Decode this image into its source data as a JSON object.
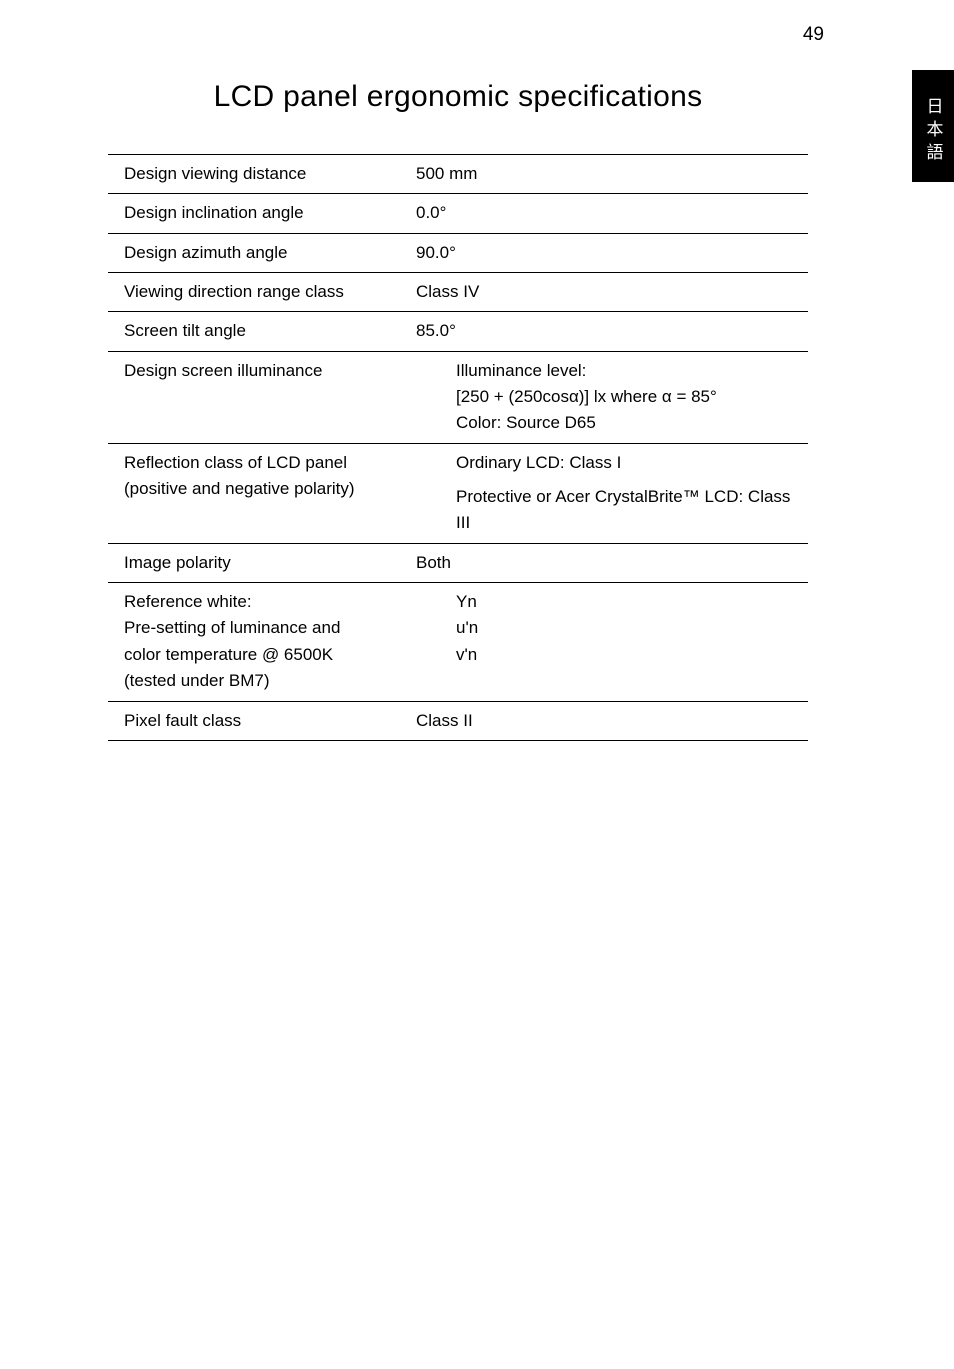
{
  "page_number": "49",
  "side_tab": "日本語",
  "title": "LCD panel ergonomic specifications",
  "table": {
    "rows": [
      {
        "label": "Design viewing distance",
        "value": "500 mm",
        "value_indent": false
      },
      {
        "label": "Design inclination angle",
        "value": "0.0°",
        "value_indent": false
      },
      {
        "label": "Design azimuth angle",
        "value": "90.0°",
        "value_indent": false
      },
      {
        "label": "Viewing direction range class",
        "value": "Class IV",
        "value_indent": false
      },
      {
        "label": "Screen tilt angle",
        "value": "85.0°",
        "value_indent": false
      },
      {
        "label": "Design screen illuminance",
        "value_lines": [
          "Illuminance level:",
          "[250 + (250cosα)] lx where α = 85°",
          "Color: Source D65"
        ],
        "value_indent": true
      },
      {
        "label_lines": [
          "Reflection class of LCD panel",
          "(positive and negative polarity)"
        ],
        "value_lines": [
          "Ordinary LCD: Class I",
          "Protective or Acer CrystalBrite™ LCD: Class III"
        ],
        "value_indent": true,
        "value_line_gap": true
      },
      {
        "label": "Image polarity",
        "value": "Both",
        "value_indent": false
      },
      {
        "label_lines": [
          "Reference white:",
          "Pre-setting of luminance and",
          "color temperature @ 6500K",
          "(tested under BM7)"
        ],
        "value_lines": [
          "Yn",
          "u'n",
          "v'n"
        ],
        "value_indent": true
      },
      {
        "label": "Pixel fault class",
        "value": "Class II",
        "value_indent": false
      }
    ]
  }
}
